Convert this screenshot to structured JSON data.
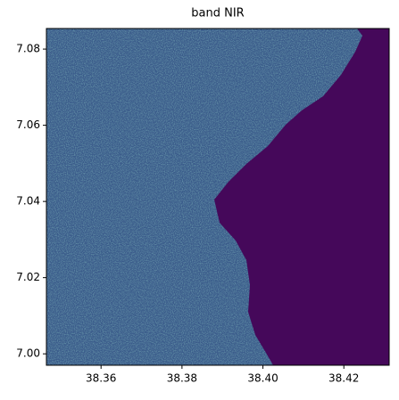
{
  "chart_data": {
    "type": "image",
    "title": "band NIR",
    "xlim": [
      38.3465,
      38.4312
    ],
    "ylim": [
      6.997,
      7.0854
    ],
    "xticks": [
      38.36,
      38.38,
      {
        "value": 38.4,
        "label": "38.40"
      },
      38.42
    ],
    "yticks": [
      {
        "value": 7,
        "label": "7.00"
      },
      7.02,
      7.04,
      7.06,
      7.08
    ],
    "grid": false
  }
}
